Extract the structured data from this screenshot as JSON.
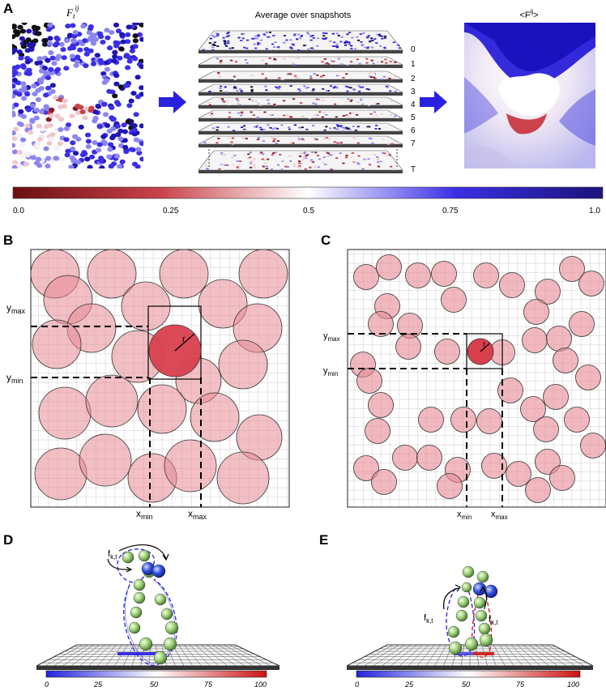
{
  "panels": {
    "A": "A",
    "B": "B",
    "C": "C",
    "D": "D",
    "E": "E"
  },
  "panel_a": {
    "left_title": "F",
    "left_title_sub": "t",
    "left_title_sup": "ij",
    "middle_title": "Average over snapshots",
    "right_title": "<F",
    "right_title_sup": "ij",
    "right_title_end": ">",
    "stack_labels": [
      "0",
      "1",
      "2",
      "3",
      "4",
      "5",
      "6",
      "7",
      "T"
    ]
  },
  "colorbar": {
    "ticks": [
      "0.0",
      "0.25",
      "0.5",
      "0.75",
      "1.0"
    ],
    "colors": {
      "low": "#6b0f12",
      "mid": "#ffffff",
      "high": "#1a137a"
    }
  },
  "panel_b": {
    "ymax": "y",
    "ymax_sub": "max",
    "ymin": "y",
    "ymin_sub": "min",
    "xmin": "x",
    "xmin_sub": "min",
    "xmax": "x",
    "xmax_sub": "max",
    "radius": "r"
  },
  "panel_c": {
    "ymax": "y",
    "ymax_sub": "max",
    "ymin": "y",
    "ymin_sub": "min",
    "xmin": "x",
    "xmin_sub": "min",
    "xmax": "x",
    "xmax_sub": "max",
    "radius": "r"
  },
  "panel_d": {
    "f_label": "f",
    "f_sub": "k,t",
    "scale_ticks": [
      "0",
      "25",
      "50",
      "75",
      "100"
    ]
  },
  "panel_e": {
    "f_left": "f",
    "f_left_sub": "k,t",
    "f_right": "f",
    "f_right_sub": "k,t",
    "scale_ticks": [
      "0",
      "25",
      "50",
      "75",
      "100"
    ]
  }
}
